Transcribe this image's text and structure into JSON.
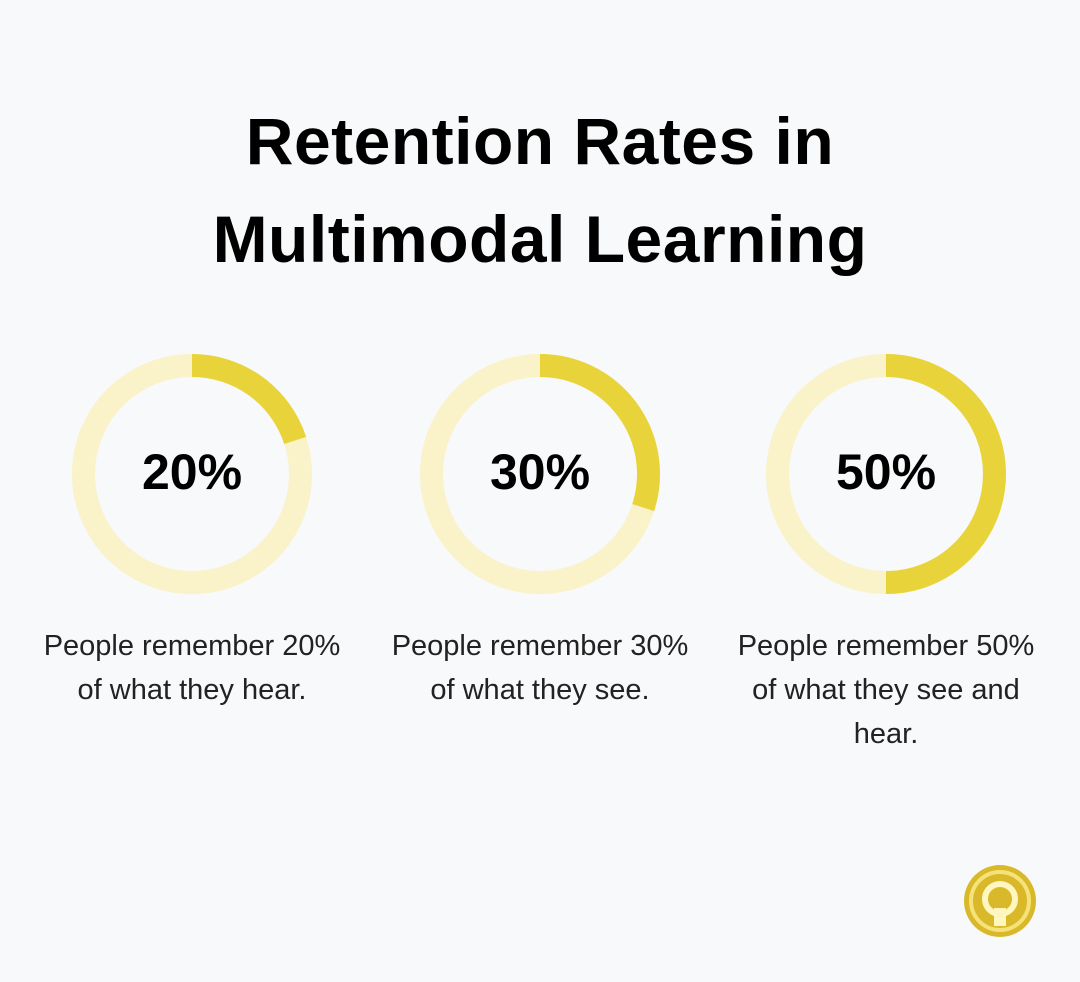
{
  "title": "Retention Rates in Multimodal Learning",
  "chart_data": [
    {
      "type": "donut",
      "values": [
        20
      ],
      "value_labels": [
        "20%"
      ],
      "caption": "People remember 20% of what they hear.",
      "color": "#e8d43a",
      "track_color": "#faf2c8"
    },
    {
      "type": "donut",
      "values": [
        30
      ],
      "value_labels": [
        "30%"
      ],
      "caption": "People remember 30% of what they see.",
      "color": "#e8d43a",
      "track_color": "#faf2c8"
    },
    {
      "type": "donut",
      "values": [
        50
      ],
      "value_labels": [
        "50%"
      ],
      "caption": "People remember 50% of what they see and hear.",
      "color": "#e8d43a",
      "track_color": "#faf2c8"
    }
  ]
}
